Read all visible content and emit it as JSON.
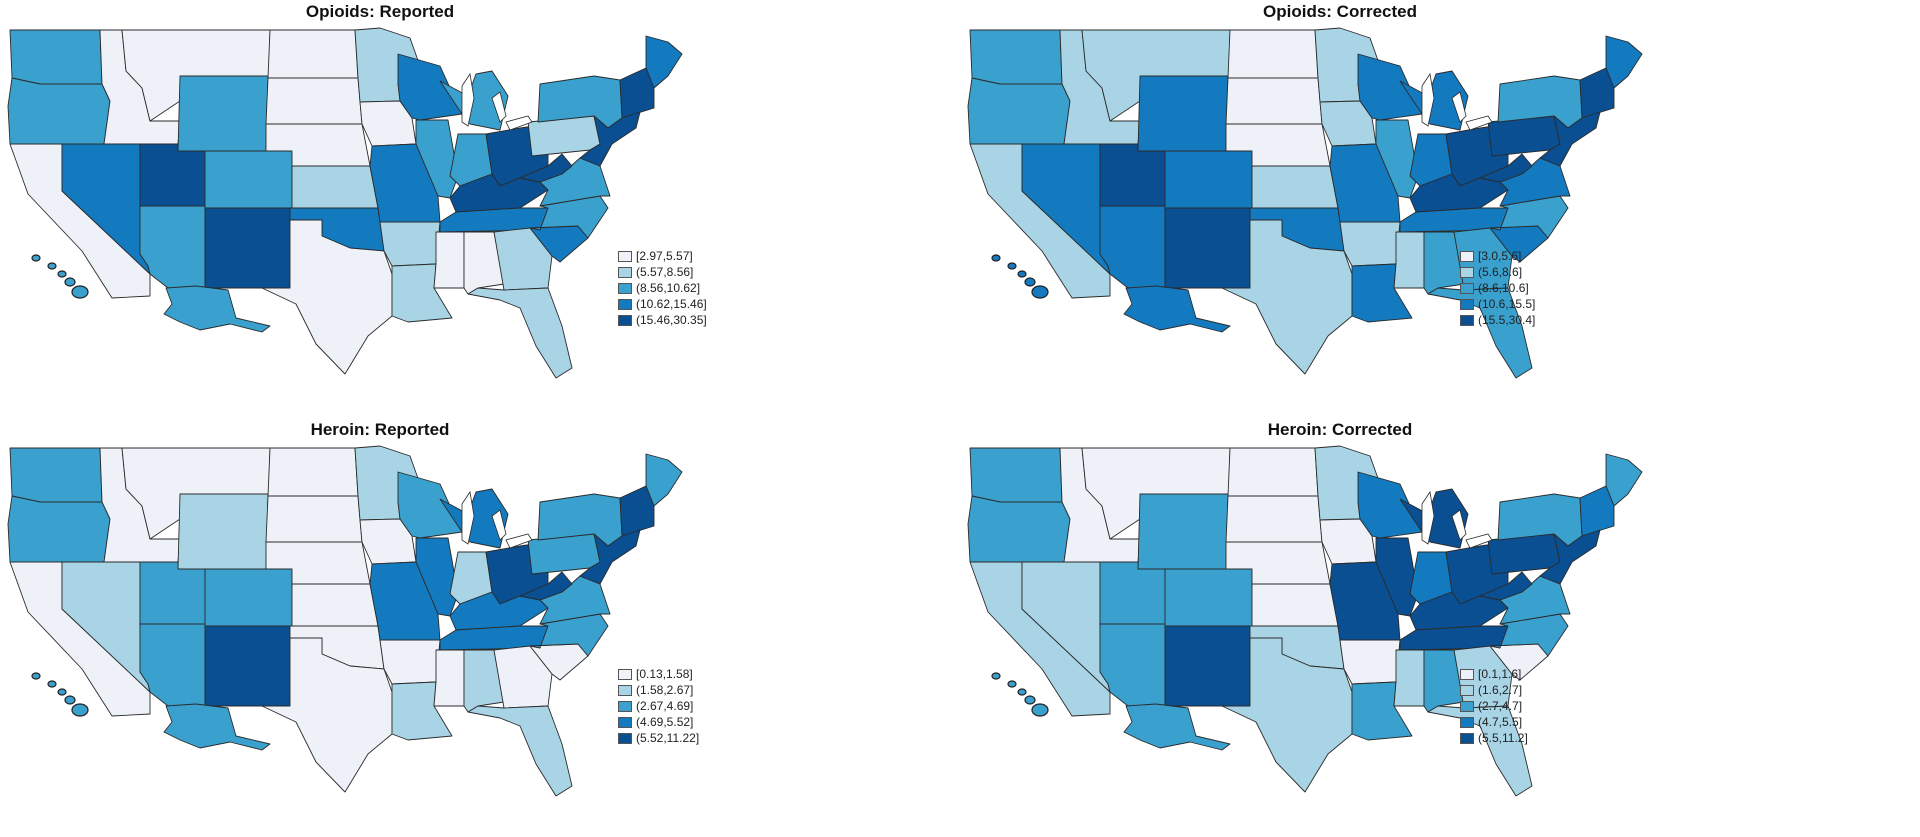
{
  "palette": [
    "#eef1f8",
    "#a8d4e6",
    "#3aa1cf",
    "#137abf",
    "#0a4f91"
  ],
  "state_names": [
    "WA",
    "OR",
    "CA",
    "ID",
    "NV",
    "MT",
    "WY",
    "UT",
    "AZ",
    "CO",
    "NM",
    "ND",
    "SD",
    "NE",
    "KS",
    "OK",
    "TX",
    "MN",
    "IA",
    "MO",
    "AR",
    "LA",
    "WI",
    "IL",
    "MI",
    "IN",
    "OH",
    "KY",
    "TN",
    "MS",
    "AL",
    "GA",
    "FL",
    "SC",
    "NC",
    "VA",
    "WV",
    "PA",
    "NY",
    "ME",
    "NEW",
    "MAT",
    "AK",
    "HI"
  ],
  "panels": [
    {
      "title": "Opioids: Reported",
      "legend": [
        "[2.97,5.57]",
        "(5.57,8.56]",
        "(8.56,10.62]",
        "(10.62,15.46]",
        "(15.46,30.35]"
      ],
      "classes": [
        2,
        2,
        0,
        0,
        3,
        0,
        2,
        4,
        2,
        2,
        4,
        0,
        0,
        0,
        1,
        3,
        0,
        1,
        0,
        3,
        1,
        1,
        3,
        2,
        2,
        2,
        4,
        4,
        3,
        0,
        0,
        1,
        1,
        3,
        2,
        2,
        4,
        1,
        2,
        3,
        4,
        4,
        2,
        2
      ]
    },
    {
      "title": "Opioids: Corrected",
      "legend": [
        "[3.0,5.6]",
        "(5.6,8.6]",
        "(8.6,10.6]",
        "(10.6,15.5]",
        "(15.5,30.4]"
      ],
      "classes": [
        2,
        2,
        1,
        1,
        3,
        1,
        3,
        4,
        3,
        3,
        4,
        0,
        0,
        0,
        1,
        3,
        1,
        1,
        1,
        3,
        1,
        3,
        3,
        2,
        3,
        3,
        4,
        4,
        3,
        1,
        2,
        2,
        2,
        3,
        2,
        3,
        4,
        4,
        2,
        3,
        4,
        4,
        3,
        3
      ]
    },
    {
      "title": "Heroin: Reported",
      "legend": [
        "[0.13,1.58]",
        "(1.58,2.67]",
        "(2.67,4.69]",
        "(4.69,5.52]",
        "(5.52,11.22]"
      ],
      "classes": [
        2,
        2,
        0,
        0,
        1,
        0,
        1,
        2,
        2,
        2,
        4,
        0,
        0,
        0,
        0,
        0,
        0,
        1,
        0,
        3,
        0,
        1,
        2,
        3,
        3,
        1,
        4,
        3,
        3,
        0,
        1,
        0,
        1,
        0,
        2,
        2,
        4,
        2,
        2,
        2,
        4,
        4,
        2,
        2
      ]
    },
    {
      "title": "Heroin: Corrected",
      "legend": [
        "[0.1,1.6]",
        "(1.6,2.7]",
        "(2.7,4.7]",
        "(4.7,5.5]",
        "(5.5,11.2]"
      ],
      "classes": [
        2,
        2,
        1,
        0,
        1,
        0,
        2,
        2,
        2,
        2,
        4,
        0,
        0,
        0,
        0,
        1,
        1,
        1,
        0,
        4,
        0,
        2,
        3,
        4,
        4,
        3,
        4,
        4,
        4,
        1,
        2,
        1,
        1,
        0,
        2,
        2,
        4,
        4,
        2,
        2,
        3,
        4,
        2,
        2
      ]
    }
  ]
}
